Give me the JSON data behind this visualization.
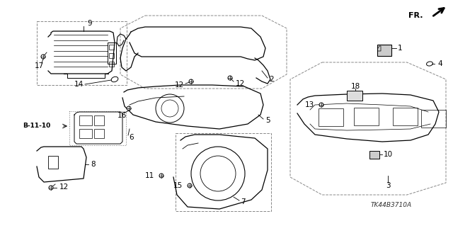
{
  "bg_color": "#ffffff",
  "part_code": "TK44B3710A",
  "fr_text": "FR.",
  "label_fontsize": 7.5,
  "part_fontsize": 6.5
}
